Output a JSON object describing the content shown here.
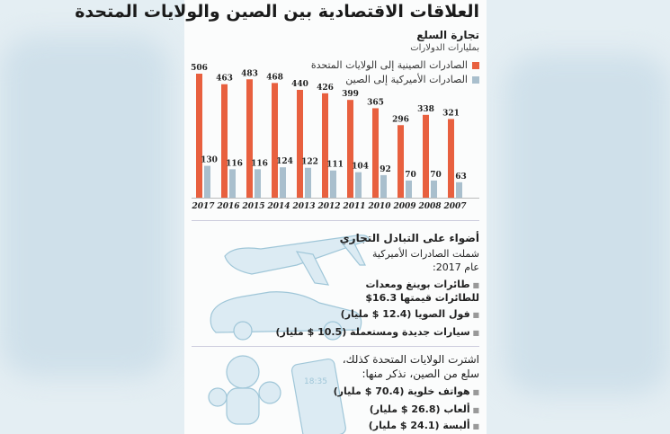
{
  "title": "العلاقات الاقتصادية بين الصين والولايات المتحدة",
  "colors": {
    "china": "#e8603f",
    "us": "#a9bfcd"
  },
  "chart_data": {
    "type": "bar",
    "title": "تجارة السلع",
    "subtitle": "بمليارات الدولارات",
    "categories": [
      "2017",
      "2016",
      "2015",
      "2014",
      "2013",
      "2012",
      "2011",
      "2010",
      "2009",
      "2008",
      "2007"
    ],
    "series": [
      {
        "name": "الصادرات الصينية إلى الولايات المتحدة",
        "values": [
          506,
          463,
          483,
          468,
          440,
          426,
          399,
          365,
          296,
          338,
          321
        ]
      },
      {
        "name": "الصادرات الأميركية إلى الصين",
        "values": [
          130,
          116,
          116,
          124,
          122,
          111,
          104,
          92,
          70,
          70,
          63
        ]
      }
    ],
    "ylim": [
      0,
      520
    ],
    "legend": "top-right",
    "grid": false
  },
  "highlights": {
    "heading": "أضواء على التبادل التجاري",
    "intro1": "شملت الصادرات الأميركية",
    "intro2": "عام 2017:",
    "items": [
      "طائرات بوينغ ومعدات",
      "للطائرات قيمتها 16.3$",
      "فول الصويا (12.4 $ مليار)",
      "سيارات جديدة ومستعملة (10.5 $ مليار)"
    ]
  },
  "imports": {
    "intro1": "اشترت الولايات المتحدة كذلك،",
    "intro2": "سلع من الصين، نذكر منها:",
    "items": [
      "هواتف خلوية (70.4 $ مليار)",
      "ألعاب (26.8 $ مليار)",
      "ألبسة (24.1 $ مليار)"
    ],
    "phone_time": "18:35"
  }
}
